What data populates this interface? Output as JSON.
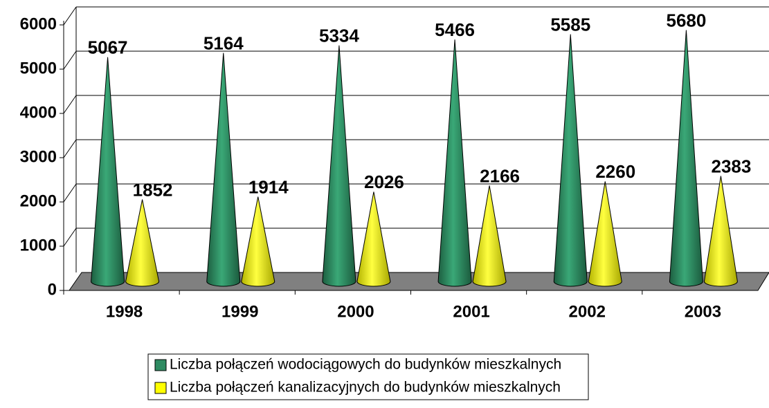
{
  "chart_data": {
    "type": "cone",
    "categories": [
      "1998",
      "1999",
      "2000",
      "2001",
      "2002",
      "2003"
    ],
    "series": [
      {
        "name": "Liczba połączeń wodociągowych do budynków mieszkalnych",
        "color": "#2e8b62",
        "values": [
          5067,
          5164,
          5334,
          5466,
          5585,
          5680
        ]
      },
      {
        "name": "Liczba połączeń kanalizacyjnych do budynków mieszkalnych",
        "color": "#ffff00",
        "values": [
          1852,
          1914,
          2026,
          2166,
          2260,
          2383
        ]
      }
    ],
    "ylim": [
      0,
      6000
    ],
    "yticks": [
      0,
      1000,
      2000,
      3000,
      4000,
      5000,
      6000
    ],
    "grid": true,
    "legend": "bottom"
  }
}
